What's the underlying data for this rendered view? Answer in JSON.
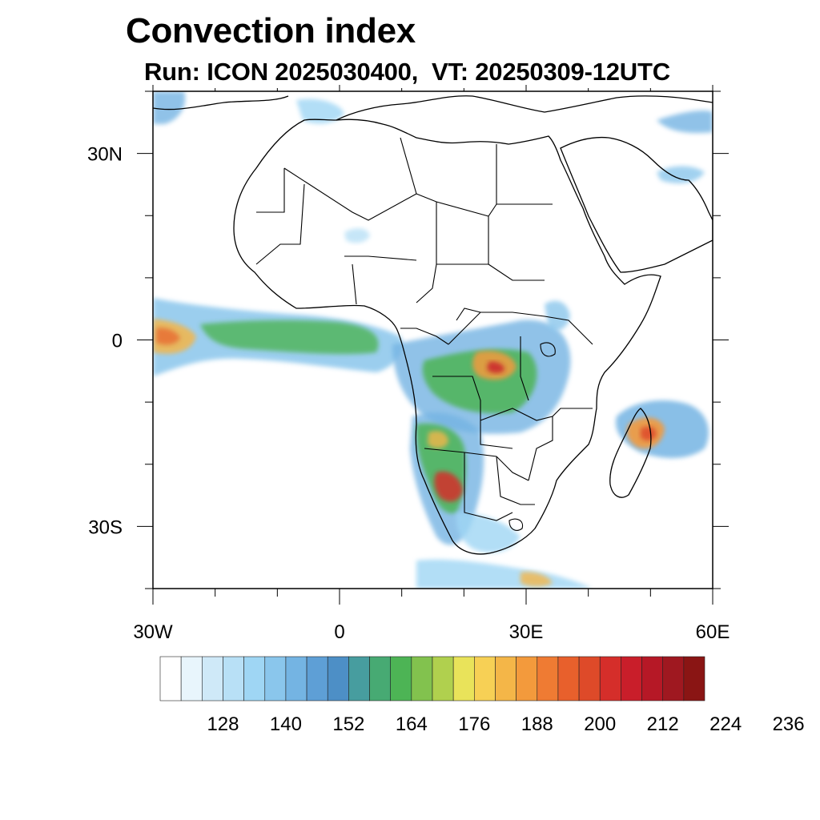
{
  "title": "Convection index",
  "subtitle": "Run: ICON 2025030400,  VT: 20250309-12UTC",
  "map": {
    "region": "Africa",
    "lon_range": [
      -30,
      60
    ],
    "lat_range": [
      -40,
      40
    ],
    "lat_ticks": [
      {
        "value": 30,
        "label": "30N"
      },
      {
        "value": 0,
        "label": "0"
      },
      {
        "value": -30,
        "label": "30S"
      }
    ],
    "lon_ticks": [
      {
        "value": -30,
        "label": "30W"
      },
      {
        "value": 0,
        "label": "0"
      },
      {
        "value": 30,
        "label": "30E"
      },
      {
        "value": 60,
        "label": "60E"
      }
    ]
  },
  "colorbar": {
    "colors": [
      "#ffffff",
      "#e8f5fc",
      "#cfe9f8",
      "#b8e0f6",
      "#9fd6f4",
      "#8ac6ec",
      "#74b4e3",
      "#5e9fd6",
      "#4d8fc6",
      "#479d9f",
      "#47aa73",
      "#4db455",
      "#82c24e",
      "#b0d04e",
      "#e9e35a",
      "#f7d055",
      "#f4b648",
      "#f39a3c",
      "#ef7b33",
      "#e8602c",
      "#de4a29",
      "#d52e2a",
      "#c91e2a",
      "#b61826",
      "#9f1820",
      "#8a1514"
    ],
    "labels": [
      "128",
      "140",
      "152",
      "164",
      "176",
      "188",
      "200",
      "212",
      "224",
      "236"
    ]
  }
}
